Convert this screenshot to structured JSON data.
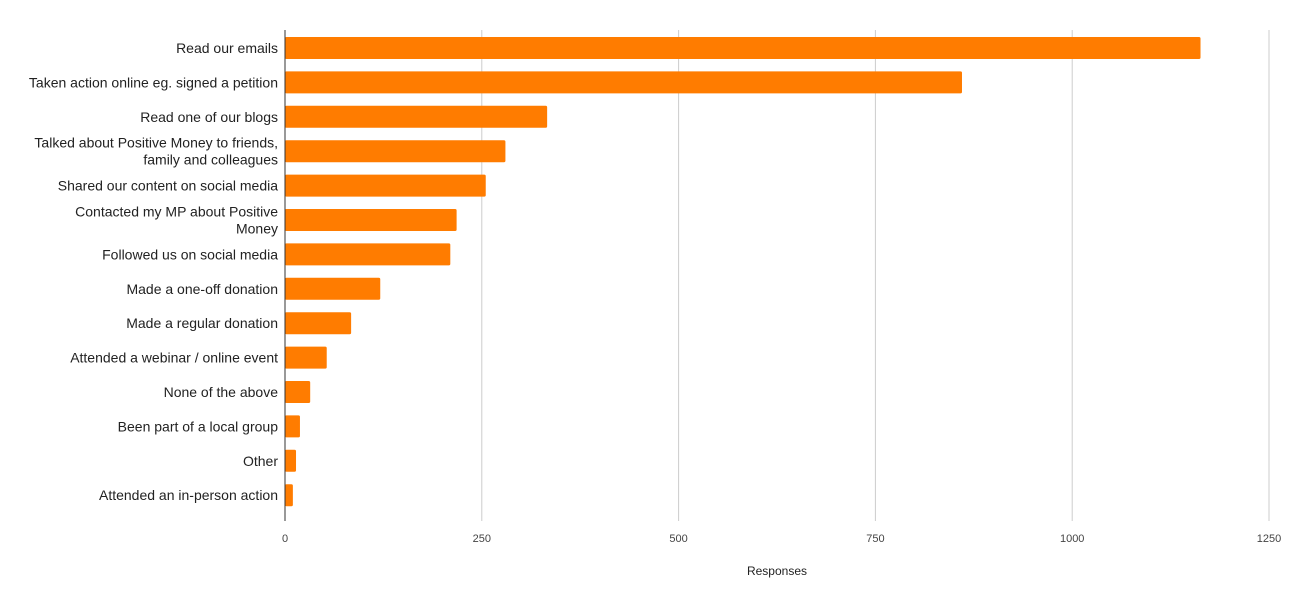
{
  "chart_data": {
    "type": "bar",
    "orientation": "horizontal",
    "categories": [
      "Read our emails",
      "Taken action online eg. signed a petition",
      "Read one of our blogs",
      "Talked about Positive Money to friends, family and colleagues",
      "Shared our content on social media",
      "Contacted my MP about Positive Money",
      "Followed us on social media",
      "Made a one-off donation",
      "Made a regular donation",
      "Attended a webinar / online event",
      "None of the above",
      "Been part of a local group",
      "Other",
      "Attended an in-person action"
    ],
    "category_label_lines": [
      [
        "Read our emails"
      ],
      [
        "Taken action online eg. signed a petition"
      ],
      [
        "Read one of our blogs"
      ],
      [
        "Talked about Positive Money to friends,",
        "family and colleagues"
      ],
      [
        "Shared our content on social media"
      ],
      [
        "Contacted my MP about Positive",
        "Money"
      ],
      [
        "Followed us on social media"
      ],
      [
        "Made a one-off donation"
      ],
      [
        "Made a regular donation"
      ],
      [
        "Attended a webinar / online event"
      ],
      [
        "None of the above"
      ],
      [
        "Been part of a local group"
      ],
      [
        "Other"
      ],
      [
        "Attended an in-person action"
      ]
    ],
    "values": [
      1163,
      860,
      333,
      280,
      255,
      218,
      210,
      121,
      84,
      53,
      32,
      19,
      14,
      10
    ],
    "xlabel": "Responses",
    "ylabel": "",
    "title": "",
    "xlim": [
      0,
      1250
    ],
    "xticks": [
      0,
      250,
      500,
      750,
      1000,
      1250
    ],
    "grid": "vertical",
    "legend": "none",
    "bar_color": "#ff7c00",
    "grid_color": "#cccccc",
    "axis_color": "#333333"
  }
}
